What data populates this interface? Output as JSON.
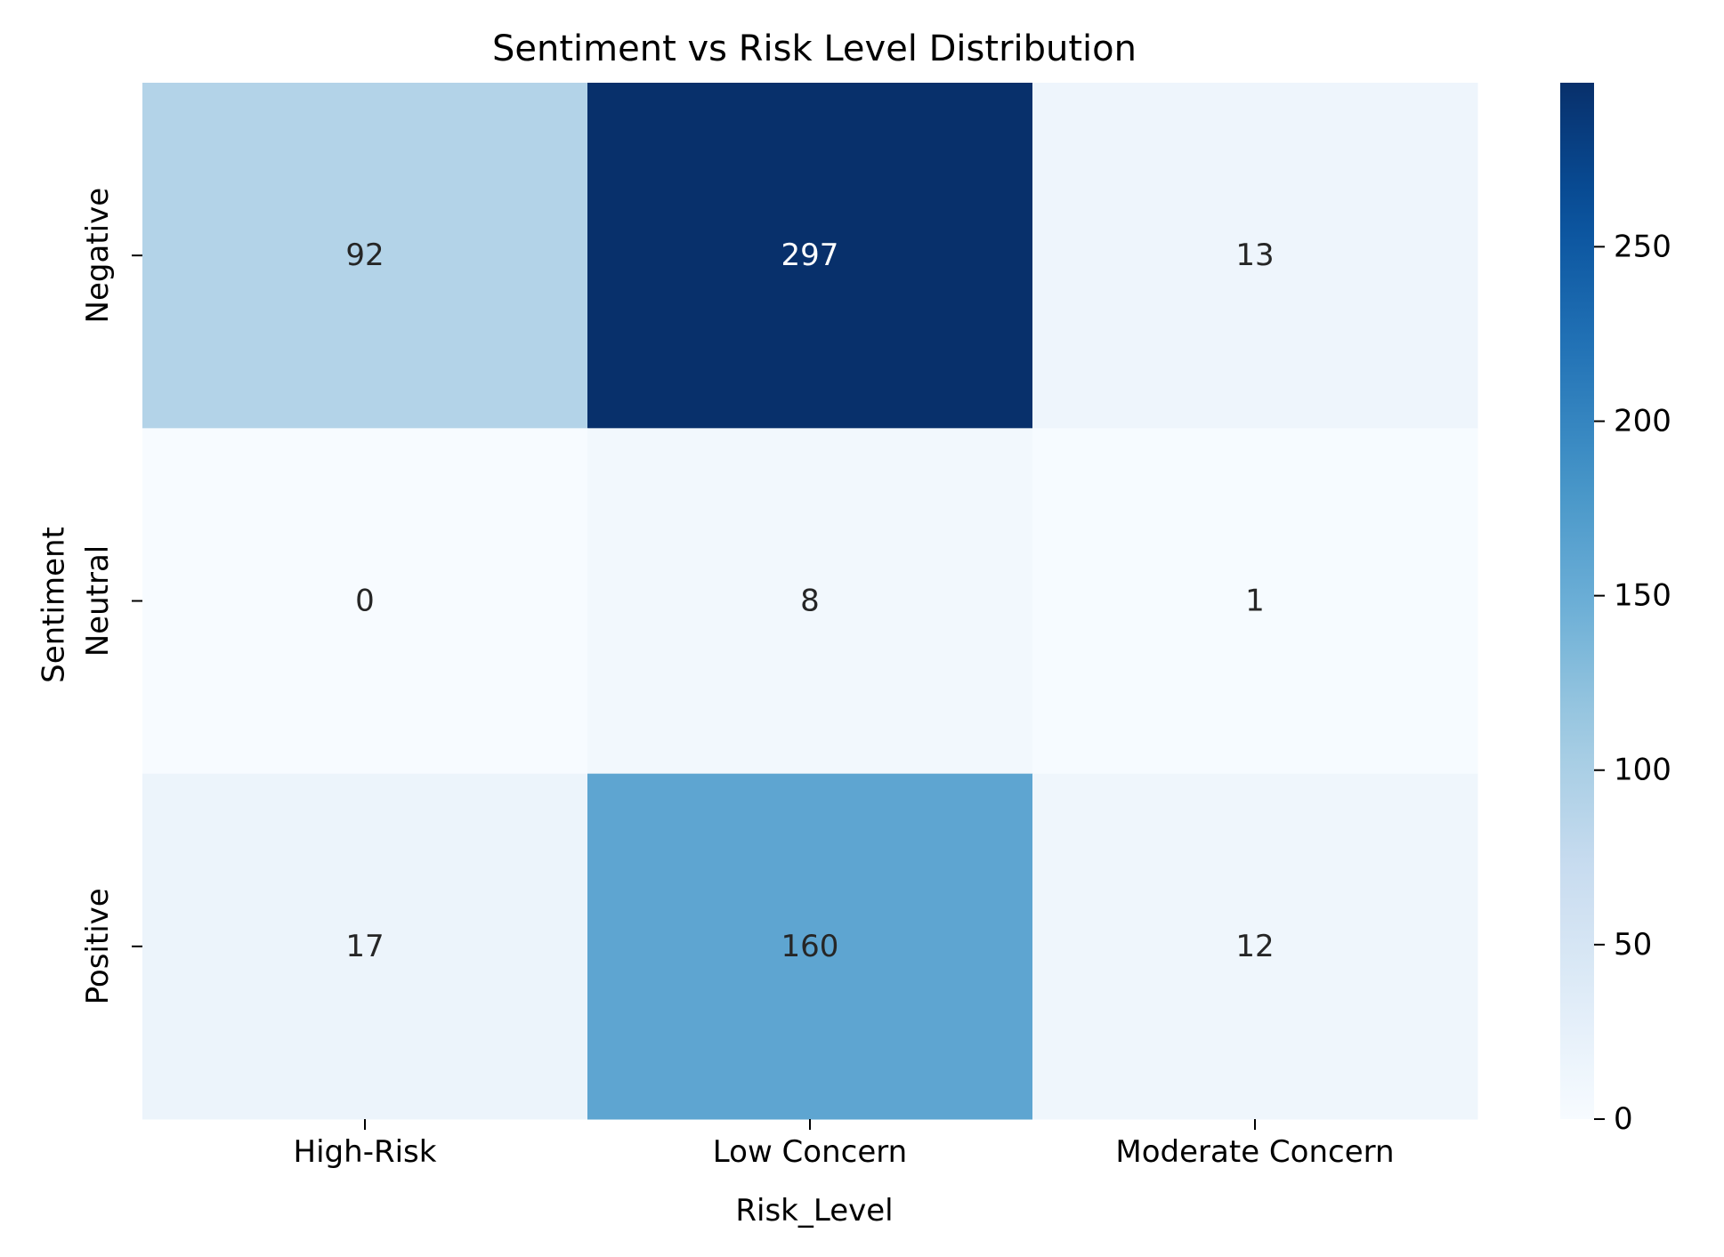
{
  "chart_data": {
    "type": "heatmap",
    "title": "Sentiment vs Risk Level Distribution",
    "xlabel": "Risk_Level",
    "ylabel": "Sentiment",
    "x_categories": [
      "High-Risk",
      "Low Concern",
      "Moderate Concern"
    ],
    "y_categories": [
      "Negative",
      "Neutral",
      "Positive"
    ],
    "values": [
      [
        92,
        297,
        13
      ],
      [
        0,
        8,
        1
      ],
      [
        17,
        160,
        12
      ]
    ],
    "colorscale": "Blues",
    "colorbar": {
      "range": [
        0,
        297
      ],
      "ticks": [
        0,
        50,
        100,
        150,
        200,
        250
      ]
    },
    "annotations": true,
    "grid": false
  }
}
